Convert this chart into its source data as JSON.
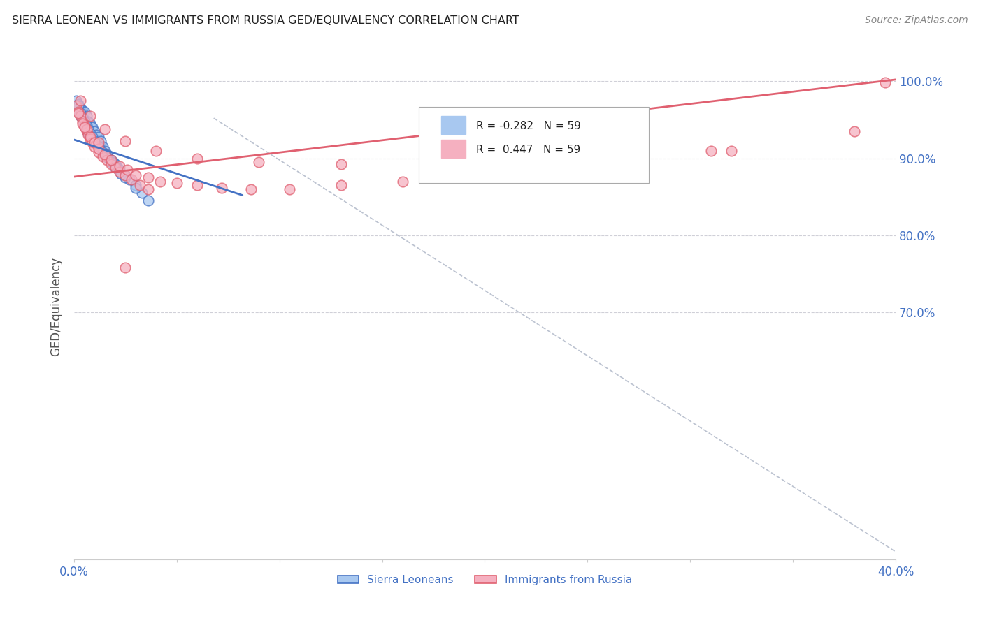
{
  "title": "SIERRA LEONEAN VS IMMIGRANTS FROM RUSSIA GED/EQUIVALENCY CORRELATION CHART",
  "source": "Source: ZipAtlas.com",
  "ylabel": "GED/Equivalency",
  "color_blue": "#a8c8f0",
  "color_pink": "#f5b0c0",
  "color_blue_line": "#4472c4",
  "color_pink_line": "#e06070",
  "color_axis": "#4472c4",
  "color_grid": "#d0d0d8",
  "color_dash": "#b0b8c8",
  "x_min": 0.0,
  "x_max": 0.4,
  "y_min": 0.38,
  "y_max": 1.035,
  "ytick_vals": [
    0.7,
    0.8,
    0.9,
    1.0
  ],
  "ytick_labels": [
    "70.0%",
    "80.0%",
    "90.0%",
    "100.0%"
  ],
  "xtick_vals": [
    0.0,
    0.05,
    0.1,
    0.15,
    0.2,
    0.25,
    0.3,
    0.35,
    0.4
  ],
  "xtick_labels": [
    "0.0%",
    "",
    "",
    "",
    "",
    "",
    "",
    "",
    "40.0%"
  ],
  "sierra_x": [
    0.001,
    0.002,
    0.002,
    0.003,
    0.003,
    0.004,
    0.004,
    0.005,
    0.005,
    0.005,
    0.006,
    0.006,
    0.006,
    0.007,
    0.007,
    0.007,
    0.008,
    0.008,
    0.008,
    0.009,
    0.009,
    0.01,
    0.01,
    0.011,
    0.011,
    0.012,
    0.012,
    0.013,
    0.014,
    0.015,
    0.016,
    0.017,
    0.018,
    0.019,
    0.02,
    0.021,
    0.022,
    0.023,
    0.025,
    0.027,
    0.03,
    0.033,
    0.036,
    0.002,
    0.003,
    0.004,
    0.005,
    0.006,
    0.007,
    0.008,
    0.009,
    0.01,
    0.012,
    0.014,
    0.016,
    0.018,
    0.02,
    0.025,
    0.03
  ],
  "sierra_y": [
    0.975,
    0.97,
    0.96,
    0.965,
    0.955,
    0.962,
    0.958,
    0.96,
    0.95,
    0.942,
    0.955,
    0.945,
    0.938,
    0.948,
    0.94,
    0.932,
    0.945,
    0.935,
    0.928,
    0.94,
    0.93,
    0.935,
    0.925,
    0.93,
    0.92,
    0.928,
    0.918,
    0.922,
    0.915,
    0.91,
    0.905,
    0.9,
    0.898,
    0.895,
    0.892,
    0.888,
    0.885,
    0.88,
    0.878,
    0.872,
    0.865,
    0.855,
    0.845,
    0.968,
    0.958,
    0.952,
    0.948,
    0.942,
    0.938,
    0.932,
    0.928,
    0.922,
    0.915,
    0.908,
    0.901,
    0.895,
    0.888,
    0.875,
    0.862
  ],
  "russia_x": [
    0.001,
    0.002,
    0.003,
    0.004,
    0.005,
    0.006,
    0.007,
    0.008,
    0.009,
    0.01,
    0.012,
    0.014,
    0.016,
    0.018,
    0.02,
    0.022,
    0.025,
    0.028,
    0.032,
    0.036,
    0.002,
    0.004,
    0.006,
    0.008,
    0.01,
    0.012,
    0.015,
    0.018,
    0.022,
    0.026,
    0.03,
    0.036,
    0.042,
    0.05,
    0.06,
    0.072,
    0.086,
    0.105,
    0.13,
    0.16,
    0.2,
    0.25,
    0.31,
    0.38,
    0.003,
    0.008,
    0.015,
    0.025,
    0.04,
    0.06,
    0.09,
    0.13,
    0.18,
    0.24,
    0.32,
    0.395,
    0.005,
    0.012,
    0.025
  ],
  "russia_y": [
    0.968,
    0.96,
    0.955,
    0.948,
    0.942,
    0.936,
    0.93,
    0.925,
    0.92,
    0.915,
    0.908,
    0.902,
    0.898,
    0.892,
    0.888,
    0.882,
    0.878,
    0.872,
    0.865,
    0.86,
    0.958,
    0.945,
    0.938,
    0.928,
    0.92,
    0.912,
    0.905,
    0.898,
    0.89,
    0.885,
    0.878,
    0.875,
    0.87,
    0.868,
    0.865,
    0.862,
    0.86,
    0.86,
    0.865,
    0.87,
    0.878,
    0.89,
    0.91,
    0.935,
    0.975,
    0.955,
    0.938,
    0.922,
    0.91,
    0.9,
    0.895,
    0.892,
    0.89,
    0.895,
    0.91,
    0.998,
    0.94,
    0.92,
    0.758
  ],
  "blue_trend_x": [
    0.0,
    0.082
  ],
  "blue_trend_y": [
    0.924,
    0.852
  ],
  "pink_trend_x": [
    0.0,
    0.4
  ],
  "pink_trend_y": [
    0.876,
    1.002
  ],
  "dash_line_x": [
    0.068,
    0.4
  ],
  "dash_line_y": [
    0.952,
    0.39
  ]
}
